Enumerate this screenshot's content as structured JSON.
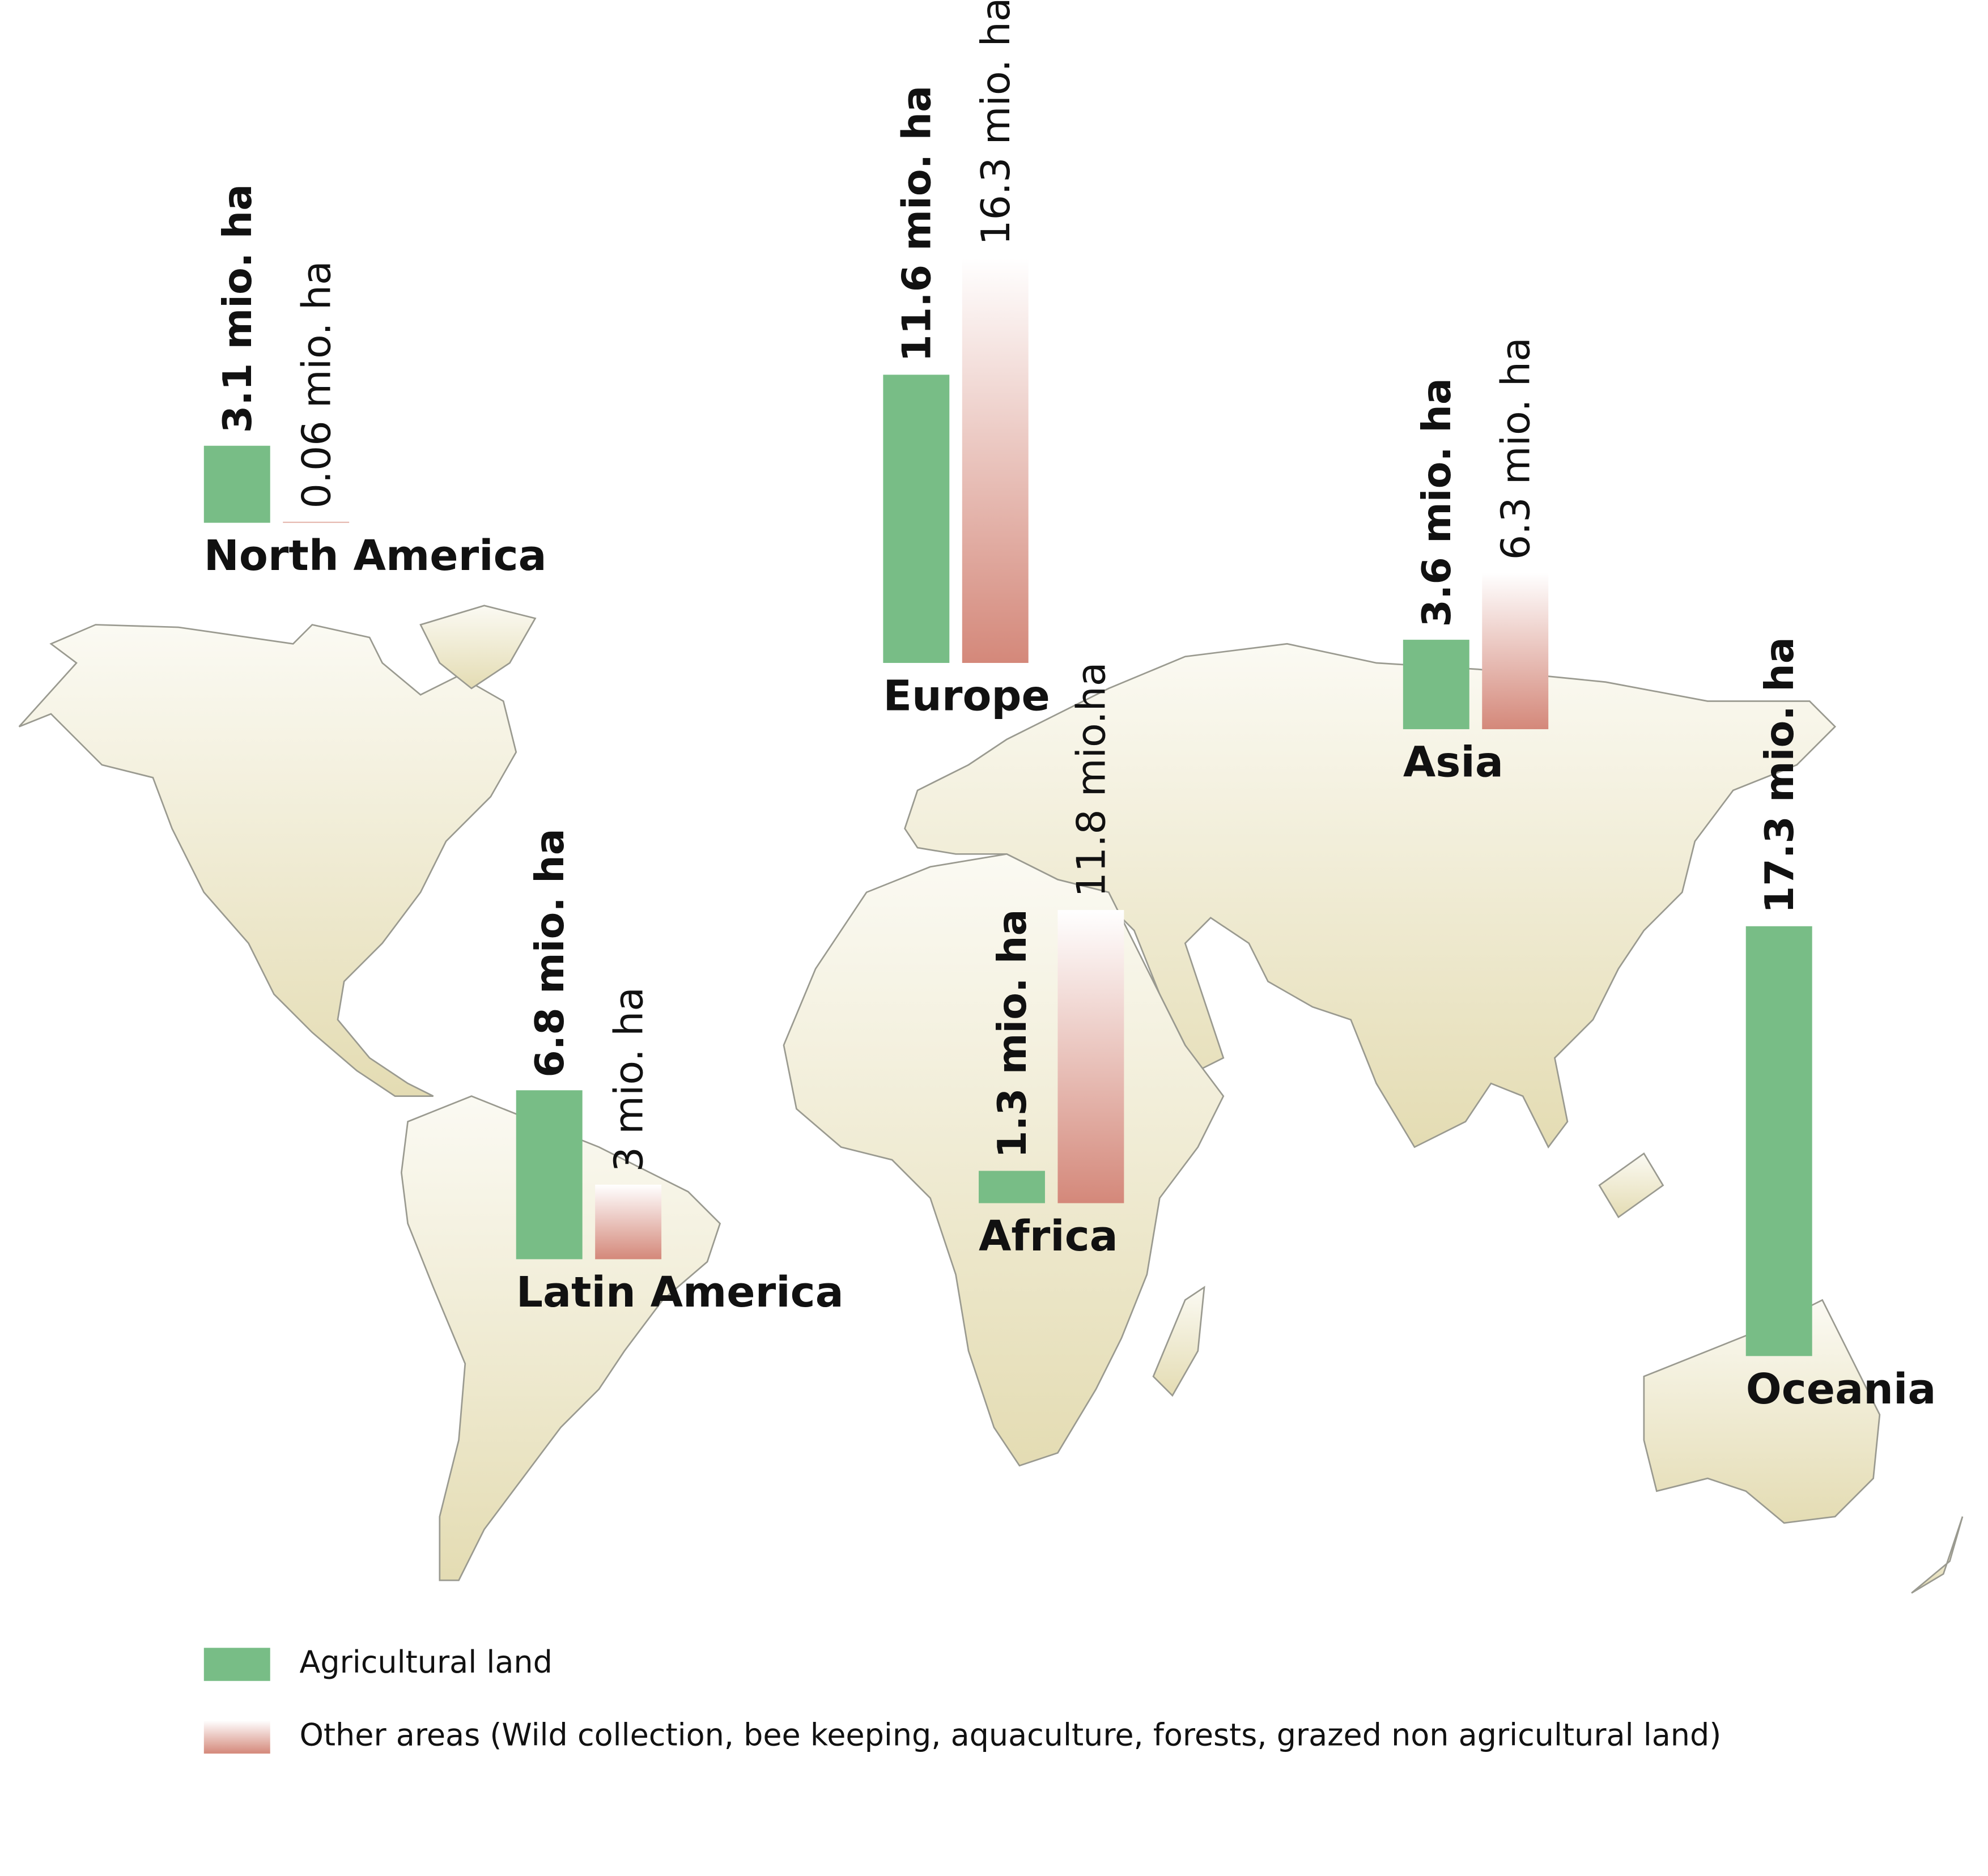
{
  "chart_data": {
    "type": "bar",
    "categories": [
      "North America",
      "Europe",
      "Asia",
      "Latin America",
      "Africa",
      "Oceania"
    ],
    "series": [
      {
        "name": "Agricultural land",
        "color": "#78bd86",
        "values": [
          3.1,
          11.6,
          3.6,
          6.8,
          1.3,
          17.3
        ],
        "value_labels": [
          "3.1 mio. ha",
          "11.6 mio. ha",
          "3.6 mio. ha",
          "6.8 mio. ha",
          "1.3 mio. ha",
          "17.3 mio. ha"
        ]
      },
      {
        "name": "Other areas (Wild collection, bee keeping, aquaculture, forests, grazed non agricultural land)",
        "color": "#d4887a",
        "values": [
          0.06,
          16.3,
          6.3,
          3,
          11.8,
          null
        ],
        "value_labels": [
          "0.06 mio. ha",
          "16.3 mio. ha",
          "6.3 mio. ha",
          "3 mio. ha",
          "11.8 mio.ha",
          null
        ]
      }
    ]
  }
}
